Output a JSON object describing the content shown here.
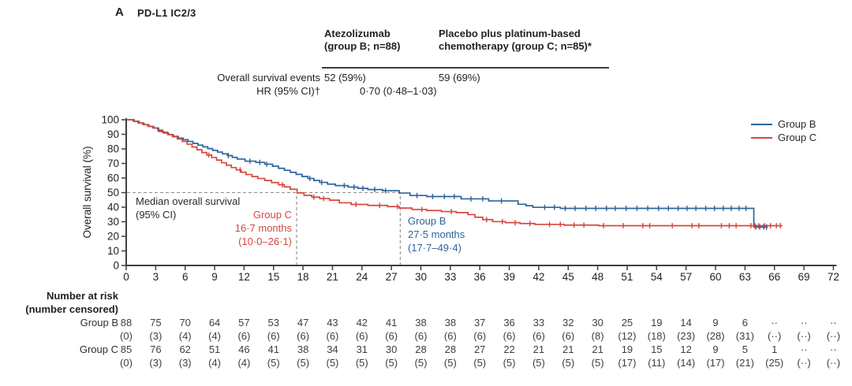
{
  "panel": {
    "label": "A",
    "title": "PD-L1 IC2/3"
  },
  "stats_table": {
    "columns": [
      {
        "header_line1": "Atezolizumab",
        "header_line2": "(group B; n=88)"
      },
      {
        "header_line1": "Placebo plus platinum-based",
        "header_line2": "chemotherapy (group C; n=85)*"
      }
    ],
    "rows": [
      {
        "label": "Overall survival events",
        "values": [
          "52 (59%)",
          "59 (69%)"
        ]
      },
      {
        "label": "HR (95% CI)†",
        "value": "0·70 (0·48–1·03)"
      }
    ]
  },
  "chart_data": {
    "type": "line",
    "subtype": "kaplan-meier-step",
    "title": "PD-L1 IC2/3",
    "xlabel": "",
    "ylabel": "Overall survival (%)",
    "xlim": [
      0,
      72
    ],
    "ylim": [
      0,
      100
    ],
    "x_ticks": [
      0,
      3,
      6,
      9,
      12,
      15,
      18,
      21,
      24,
      27,
      30,
      33,
      36,
      39,
      42,
      45,
      48,
      51,
      54,
      57,
      60,
      63,
      66,
      69,
      72
    ],
    "y_ticks": [
      100,
      90,
      80,
      70,
      60,
      50,
      40,
      30,
      20,
      10,
      0
    ],
    "grid": false,
    "legend_position": "top-right",
    "reference": {
      "h_line_pct": 50,
      "v_lines_months": [
        17.35,
        27.9
      ]
    },
    "annotations": {
      "median_title_line1": "Median overall survival",
      "median_title_line2": "(95% CI)",
      "group_c": {
        "name": "Group C",
        "median": "16·7 months",
        "ci": "(10·0–26·1)"
      },
      "group_b": {
        "name": "Group B",
        "median": "27·5 months",
        "ci": "(17·7–49·4)"
      }
    },
    "series": [
      {
        "name": "Group B",
        "color": "#2d639c",
        "end_month": 65.3,
        "points": [
          [
            0,
            100
          ],
          [
            0.8,
            98.9
          ],
          [
            1.3,
            97.7
          ],
          [
            1.8,
            96.6
          ],
          [
            2.3,
            95.4
          ],
          [
            2.8,
            94.3
          ],
          [
            3.3,
            92.0
          ],
          [
            3.8,
            90.9
          ],
          [
            4.3,
            89.7
          ],
          [
            4.8,
            88.6
          ],
          [
            5.3,
            87.4
          ],
          [
            5.8,
            86.3
          ],
          [
            6.3,
            85.1
          ],
          [
            6.8,
            83.8
          ],
          [
            7.3,
            82.6
          ],
          [
            7.8,
            81.4
          ],
          [
            8.3,
            80.2
          ],
          [
            8.8,
            79.0
          ],
          [
            9.3,
            77.8
          ],
          [
            9.8,
            76.6
          ],
          [
            10.3,
            75.4
          ],
          [
            10.8,
            74.2
          ],
          [
            11.3,
            73.0
          ],
          [
            12.1,
            71.6
          ],
          [
            13.2,
            70.7
          ],
          [
            14.1,
            69.5
          ],
          [
            14.9,
            68.1
          ],
          [
            15.5,
            66.7
          ],
          [
            16.1,
            65.3
          ],
          [
            16.7,
            63.9
          ],
          [
            17.3,
            62.5
          ],
          [
            17.9,
            61.1
          ],
          [
            18.5,
            59.7
          ],
          [
            19.1,
            58.3
          ],
          [
            19.7,
            57.0
          ],
          [
            20.5,
            55.8
          ],
          [
            21.3,
            54.8
          ],
          [
            22.6,
            53.8
          ],
          [
            23.6,
            52.9
          ],
          [
            24.6,
            52.1
          ],
          [
            26.1,
            51.3
          ],
          [
            27.8,
            49.7
          ],
          [
            28.9,
            48.0
          ],
          [
            30.6,
            47.3
          ],
          [
            34.1,
            45.7
          ],
          [
            36.9,
            44.3
          ],
          [
            39.9,
            42.0
          ],
          [
            40.7,
            41.0
          ],
          [
            41.4,
            39.9
          ],
          [
            44.2,
            39.2
          ],
          [
            63.9,
            26.4
          ]
        ],
        "censor_months": [
          10.4,
          12.6,
          13.6,
          14.3,
          18.7,
          19.9,
          22.2,
          23.2,
          24.1,
          25.3,
          26.4,
          29.6,
          31.2,
          32.4,
          33.4,
          35.1,
          36.3,
          38.2,
          42.6,
          43.6,
          44.7,
          45.7,
          46.8,
          47.8,
          48.9,
          49.8,
          50.9,
          52.0,
          53.1,
          54.2,
          55.2,
          56.2,
          57.1,
          58.0,
          59.0,
          59.9,
          60.8,
          61.6,
          62.4,
          63.1,
          64.1,
          64.5,
          64.9,
          65.2
        ]
      },
      {
        "name": "Group C",
        "color": "#d5473d",
        "end_month": 66.8,
        "points": [
          [
            0,
            100
          ],
          [
            0.7,
            99.0
          ],
          [
            1.2,
            97.8
          ],
          [
            1.7,
            96.7
          ],
          [
            2.2,
            95.5
          ],
          [
            2.7,
            94.4
          ],
          [
            3.2,
            92.9
          ],
          [
            3.7,
            91.4
          ],
          [
            4.2,
            89.9
          ],
          [
            4.7,
            88.3
          ],
          [
            5.2,
            86.8
          ],
          [
            5.7,
            85.1
          ],
          [
            6.2,
            83.2
          ],
          [
            6.7,
            81.3
          ],
          [
            7.2,
            79.4
          ],
          [
            7.7,
            77.5
          ],
          [
            8.2,
            75.8
          ],
          [
            8.7,
            74.1
          ],
          [
            9.2,
            72.3
          ],
          [
            9.7,
            70.5
          ],
          [
            10.2,
            68.8
          ],
          [
            10.7,
            67.2
          ],
          [
            11.2,
            65.6
          ],
          [
            11.7,
            64.0
          ],
          [
            12.2,
            62.4
          ],
          [
            12.8,
            61.0
          ],
          [
            13.4,
            59.7
          ],
          [
            14.1,
            58.3
          ],
          [
            14.8,
            56.9
          ],
          [
            15.5,
            55.4
          ],
          [
            16.1,
            53.9
          ],
          [
            16.7,
            52.3
          ],
          [
            17.4,
            49.8
          ],
          [
            18.1,
            48.1
          ],
          [
            18.9,
            46.9
          ],
          [
            19.7,
            45.9
          ],
          [
            20.7,
            44.8
          ],
          [
            21.7,
            43.0
          ],
          [
            22.9,
            41.9
          ],
          [
            24.6,
            41.2
          ],
          [
            26.6,
            40.4
          ],
          [
            27.8,
            39.4
          ],
          [
            29.1,
            38.4
          ],
          [
            30.6,
            37.7
          ],
          [
            32.1,
            37.0
          ],
          [
            33.6,
            36.3
          ],
          [
            34.8,
            34.9
          ],
          [
            35.5,
            33.1
          ],
          [
            36.3,
            31.5
          ],
          [
            37.3,
            30.1
          ],
          [
            38.6,
            29.4
          ],
          [
            40.1,
            28.8
          ],
          [
            41.6,
            28.2
          ],
          [
            44.6,
            27.7
          ],
          [
            48.1,
            27.3
          ]
        ],
        "censor_months": [
          8.4,
          11.6,
          15.9,
          19.1,
          20.1,
          23.4,
          25.8,
          27.6,
          30.1,
          33.1,
          36.7,
          38.3,
          39.6,
          41.1,
          43.1,
          44.2,
          45.6,
          46.6,
          48.6,
          50.6,
          52.6,
          53.3,
          55.6,
          57.6,
          58.3,
          60.6,
          61.4,
          62.1,
          63.6,
          64.0,
          64.4,
          65.0,
          65.6,
          66.2,
          66.6
        ]
      }
    ]
  },
  "number_at_risk": {
    "title_line1": "Number at risk",
    "title_line2": "(number censored)",
    "timepoints": [
      0,
      3,
      6,
      9,
      12,
      15,
      18,
      21,
      24,
      27,
      30,
      33,
      36,
      39,
      42,
      45,
      48,
      51,
      54,
      57,
      60,
      63,
      66,
      69,
      72
    ],
    "rows": [
      {
        "label": "Group B",
        "counts": [
          "88",
          "75",
          "70",
          "64",
          "57",
          "53",
          "47",
          "43",
          "42",
          "41",
          "38",
          "38",
          "37",
          "36",
          "33",
          "32",
          "30",
          "25",
          "19",
          "14",
          "9",
          "6",
          "··",
          "··",
          "··"
        ],
        "censored": [
          "(0)",
          "(3)",
          "(4)",
          "(4)",
          "(6)",
          "(6)",
          "(6)",
          "(6)",
          "(6)",
          "(6)",
          "(6)",
          "(6)",
          "(6)",
          "(6)",
          "(6)",
          "(6)",
          "(8)",
          "(12)",
          "(18)",
          "(23)",
          "(28)",
          "(31)",
          "(··)",
          "(··)",
          "(··)"
        ]
      },
      {
        "label": "Group C",
        "counts": [
          "85",
          "76",
          "62",
          "51",
          "46",
          "41",
          "38",
          "34",
          "31",
          "30",
          "28",
          "28",
          "27",
          "22",
          "21",
          "21",
          "21",
          "19",
          "15",
          "12",
          "9",
          "5",
          "1",
          "··",
          "··"
        ],
        "censored": [
          "(0)",
          "(3)",
          "(3)",
          "(4)",
          "(4)",
          "(5)",
          "(5)",
          "(5)",
          "(5)",
          "(5)",
          "(5)",
          "(5)",
          "(5)",
          "(5)",
          "(5)",
          "(5)",
          "(5)",
          "(17)",
          "(11)",
          "(14)",
          "(17)",
          "(21)",
          "(25)",
          "(··)",
          "(··)"
        ]
      }
    ]
  }
}
